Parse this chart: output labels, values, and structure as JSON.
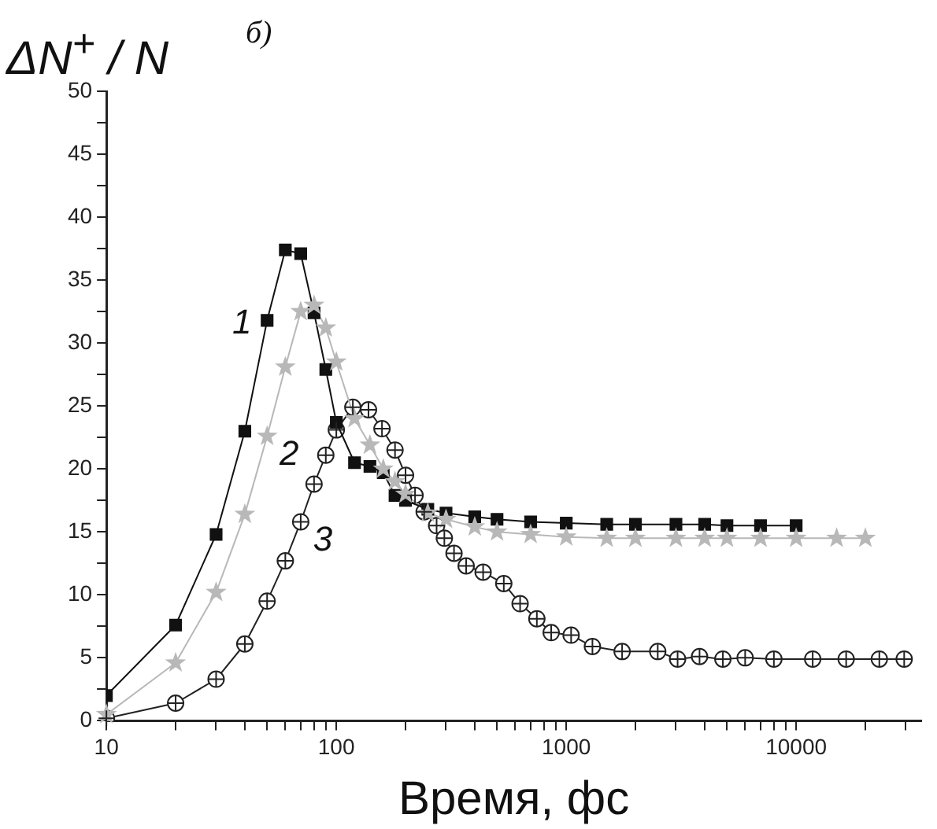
{
  "chart_data": {
    "type": "line",
    "ylabel": "ΔN$^{+}$ / N",
    "xlabel": "Время, фс",
    "log": "x",
    "legend": false,
    "grid": false,
    "xlim": [
      10,
      35000
    ],
    "ylim": [
      0,
      50
    ],
    "xticks": [
      10,
      {
        "value": 20,
        "label": null
      },
      {
        "value": 30,
        "label": null
      },
      {
        "value": 40,
        "label": null
      },
      {
        "value": 50,
        "label": null
      },
      {
        "value": 60,
        "label": null
      },
      {
        "value": 70,
        "label": null
      },
      {
        "value": 80,
        "label": null
      },
      {
        "value": 90,
        "label": null
      },
      100,
      {
        "value": 200,
        "label": null
      },
      {
        "value": 300,
        "label": null
      },
      {
        "value": 400,
        "label": null
      },
      {
        "value": 500,
        "label": null
      },
      {
        "value": 600,
        "label": null
      },
      {
        "value": 700,
        "label": null
      },
      {
        "value": 800,
        "label": null
      },
      {
        "value": 900,
        "label": null
      },
      1000,
      {
        "value": 2000,
        "label": null
      },
      {
        "value": 3000,
        "label": null
      },
      {
        "value": 4000,
        "label": null
      },
      {
        "value": 5000,
        "label": null
      },
      {
        "value": 6000,
        "label": null
      },
      {
        "value": 7000,
        "label": null
      },
      {
        "value": 8000,
        "label": null
      },
      {
        "value": 9000,
        "label": null
      },
      10000,
      {
        "value": 20000,
        "label": null
      },
      {
        "value": 30000,
        "label": null
      }
    ],
    "yticks": [
      0,
      {
        "value": 2.5,
        "label": null
      },
      5,
      {
        "value": 7.5,
        "label": null
      },
      10,
      {
        "value": 12.5,
        "label": null
      },
      15,
      {
        "value": 17.5,
        "label": null
      },
      20,
      {
        "value": 22.5,
        "label": null
      },
      25,
      {
        "value": 27.5,
        "label": null
      },
      30,
      {
        "value": 32.5,
        "label": null
      },
      35,
      {
        "value": 37.5,
        "label": null
      },
      40,
      {
        "value": 42.5,
        "label": null
      },
      45,
      {
        "value": 47.5,
        "label": null
      },
      50
    ],
    "series": [
      {
        "name": "1",
        "color": "#111111",
        "marker": "square",
        "x": [
          10,
          20,
          30,
          40,
          50,
          60,
          70,
          80,
          90,
          100,
          120,
          140,
          160,
          180,
          200,
          250,
          300,
          400,
          500,
          700,
          1000,
          1500,
          2000,
          3000,
          4000,
          5000,
          7000,
          10000
        ],
        "values": [
          2,
          7.6,
          14.8,
          23,
          31.8,
          37.4,
          37.1,
          32.4,
          27.9,
          23.7,
          20.5,
          20.2,
          19.7,
          17.9,
          17.5,
          16.8,
          16.5,
          16.2,
          16,
          15.8,
          15.7,
          15.6,
          15.6,
          15.6,
          15.6,
          15.5,
          15.5,
          15.5
        ]
      },
      {
        "name": "2",
        "color": "#b8b8b8",
        "marker": "star",
        "x": [
          10,
          20,
          30,
          40,
          50,
          60,
          70,
          80,
          90,
          100,
          120,
          140,
          160,
          180,
          200,
          250,
          300,
          400,
          500,
          700,
          1000,
          1500,
          2000,
          3000,
          4000,
          5000,
          7000,
          10000,
          15000,
          20000
        ],
        "values": [
          0.5,
          4.6,
          10.2,
          16.4,
          22.6,
          28.1,
          32.5,
          33,
          31.2,
          28.5,
          24,
          21.9,
          20,
          19,
          18,
          16.5,
          16,
          15.4,
          15,
          14.8,
          14.6,
          14.5,
          14.5,
          14.5,
          14.5,
          14.5,
          14.5,
          14.5,
          14.5,
          14.5
        ]
      },
      {
        "name": "3",
        "color": "#222222",
        "marker": "circle",
        "x": [
          10,
          20,
          30,
          40,
          50,
          60,
          70,
          80,
          90,
          100,
          118,
          138,
          158,
          180,
          200,
          220,
          241,
          273,
          295,
          325,
          367,
          435,
          535,
          630,
          745,
          860,
          1050,
          1300,
          1750,
          2500,
          3050,
          3800,
          4800,
          6000,
          8000,
          11800,
          16500,
          23000,
          29500
        ],
        "values": [
          0.2,
          1.4,
          3.3,
          6.1,
          9.5,
          12.7,
          15.8,
          18.8,
          21.1,
          23.1,
          24.9,
          24.7,
          23.2,
          21.5,
          19.5,
          17.9,
          16.6,
          15.5,
          14.5,
          13.3,
          12.3,
          11.8,
          10.9,
          9.3,
          8.1,
          7,
          6.8,
          5.9,
          5.5,
          5.5,
          4.9,
          5.1,
          4.9,
          5,
          4.9,
          4.9,
          4.9,
          4.9,
          4.9
        ]
      }
    ],
    "annotations": [
      "б)"
    ]
  }
}
